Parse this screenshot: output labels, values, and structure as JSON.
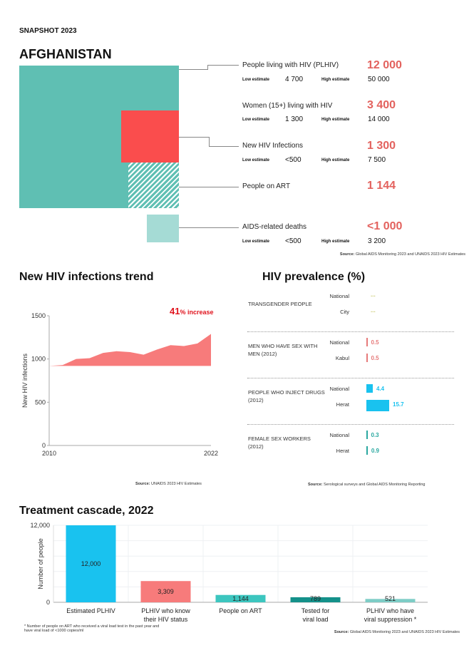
{
  "header": {
    "snapshot": "SNAPSHOT 2023",
    "country": "AFGHANISTAN"
  },
  "indicators": [
    {
      "label": "People living with HIV (PLHIV)",
      "value": "12 000",
      "low_label": "Low estimate",
      "low": "4 700",
      "high_label": "High estimate",
      "high": "50 000"
    },
    {
      "label": "Women (15+) living with HIV",
      "value": "3 400",
      "low_label": "Low estimate",
      "low": "1 300",
      "high_label": "High estimate",
      "high": "14 000"
    },
    {
      "label": "New HIV Infections",
      "value": "1 300",
      "low_label": "Low estimate",
      "low": "<500",
      "high_label": "High estimate",
      "high": "7 500"
    },
    {
      "label": "People on ART",
      "value": "1 144"
    },
    {
      "label": "AIDS-related deaths",
      "value": "<1 000",
      "low_label": "Low estimate",
      "low": "<500",
      "high_label": "High estimate",
      "high": "3 200"
    }
  ],
  "colors": {
    "plhiv": "#5fbfb3",
    "new_infections": "#fa4d4d",
    "deaths": "#a5dbd5",
    "accent": "#e3625e",
    "trend": "#f77b7b",
    "msm": "#e67a7a",
    "pwid": "#19c2ef",
    "fsw": "#2aa8a0",
    "cascade": [
      "#19c2ef",
      "#f77b7b",
      "#3cc6bf",
      "#14918a",
      "#7dcdc6"
    ]
  },
  "sources": {
    "snapshot": {
      "label": "Source:",
      "text": "Global AIDS Monitoring 2023 and UNAIDS 2023 HIV Estimates"
    },
    "trend": {
      "label": "Source:",
      "text": "UNAIDS 2023 HIV Estimates"
    },
    "prevalence": {
      "label": "Source:",
      "text": "Serological surveys and Global AIDS Monitoring Reporting"
    },
    "cascade": {
      "label": "Source:",
      "text": "Global AIDS Monitoring 2023 and UNAIDS 2023 HIV Estimates"
    }
  },
  "chart_data": [
    {
      "type": "area",
      "title": "New HIV infections trend",
      "ylabel": "New HIV infections",
      "xlabel": "",
      "x": [
        2010,
        2011,
        2012,
        2013,
        2014,
        2015,
        2016,
        2017,
        2018,
        2019,
        2020,
        2021,
        2022
      ],
      "values": [
        920,
        930,
        1000,
        1010,
        1070,
        1090,
        1080,
        1050,
        1110,
        1160,
        1150,
        1180,
        1290
      ],
      "ylim": [
        0,
        1500
      ],
      "yticks": [
        "0",
        "500",
        "1000",
        "1500"
      ],
      "xticks": [
        "2010",
        "2022"
      ],
      "annotation": {
        "number": "41",
        "text": "% increase"
      },
      "grid": false
    },
    {
      "type": "bar",
      "title": "HIV prevalence (%)",
      "groups": [
        {
          "name": "TRANSGENDER PEOPLE",
          "rows": [
            {
              "label": "National",
              "value": "..."
            },
            {
              "label": "City",
              "value": "..."
            }
          ]
        },
        {
          "name": "MEN WHO HAVE SEX WITH MEN (2012)",
          "rows": [
            {
              "label": "National",
              "value": 0.5
            },
            {
              "label": "Kabul",
              "value": 0.5
            }
          ]
        },
        {
          "name": "PEOPLE WHO INJECT DRUGS (2012)",
          "rows": [
            {
              "label": "National",
              "value": 4.4
            },
            {
              "label": "Herat",
              "value": 15.7
            }
          ]
        },
        {
          "name": "FEMALE SEX WORKERS (2012)",
          "rows": [
            {
              "label": "National",
              "value": 0.3
            },
            {
              "label": "Herat",
              "value": 0.9
            }
          ]
        }
      ]
    },
    {
      "type": "bar",
      "title": "Treatment cascade, 2022",
      "ylabel": "Number of people",
      "categories": [
        "Estimated PLHIV",
        "PLHIV who know their HIV status",
        "People on ART",
        "Tested for viral load",
        "PLHIV who have viral suppression *"
      ],
      "values": [
        12000,
        3309,
        1144,
        789,
        521
      ],
      "labels": [
        "12,000",
        "3,309",
        "1,144",
        "789",
        "521"
      ],
      "ylim": [
        0,
        12000
      ],
      "yticks": [
        "0",
        "12,000"
      ],
      "grid": true,
      "footnote": "* Number of people on ART who received a viral load test in the past year and have viral load of <1000 copies/ml"
    }
  ]
}
